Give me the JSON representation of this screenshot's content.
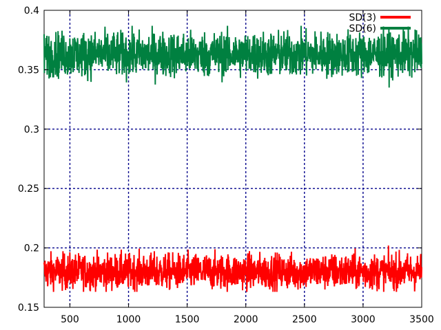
{
  "chart_data": {
    "type": "line",
    "title": "",
    "xlabel": "",
    "ylabel": "",
    "xlim": [
      280,
      3500
    ],
    "ylim": [
      0.15,
      0.4
    ],
    "x_ticks": [
      500,
      1000,
      1500,
      2000,
      2500,
      3000,
      3500
    ],
    "y_ticks": [
      0.15,
      0.2,
      0.25,
      0.3,
      0.35,
      0.4
    ],
    "x_tick_labels": [
      "500",
      "1000",
      "1500",
      "2000",
      "2500",
      "3000",
      "3500"
    ],
    "y_tick_labels": [
      "0.15",
      "0.2",
      "0.25",
      "0.3",
      "0.35",
      "0.4"
    ],
    "grid": true,
    "grid_style": "dashed",
    "grid_color": "#00008b",
    "legend_position": "top-right",
    "series": [
      {
        "name": "SD(3)",
        "color": "#ff0000",
        "x_start": 280,
        "x_end": 3500,
        "mean": 0.18,
        "min": 0.163,
        "max": 0.203,
        "typical_range": [
          0.168,
          0.192
        ]
      },
      {
        "name": "SD(6)",
        "color": "#008040",
        "x_start": 280,
        "x_end": 3500,
        "mean": 0.363,
        "min": 0.335,
        "max": 0.387,
        "typical_range": [
          0.348,
          0.378
        ]
      }
    ]
  }
}
